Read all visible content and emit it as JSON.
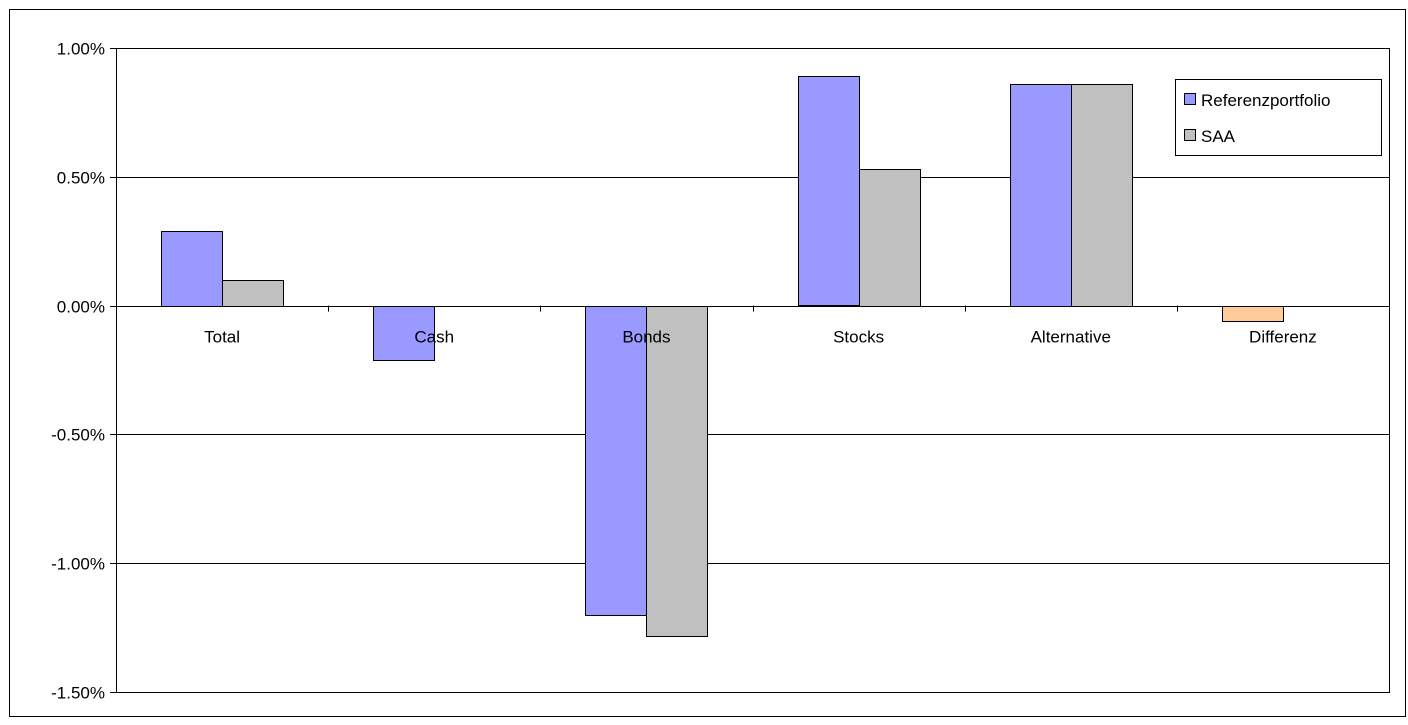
{
  "chart_data": {
    "type": "bar",
    "title": "",
    "xlabel": "",
    "ylabel": "",
    "categories": [
      "Total",
      "Cash",
      "Bonds",
      "Stocks",
      "Alternative",
      "Differenz"
    ],
    "series": [
      {
        "name": "Referenzportfolio",
        "color": "#9999ff",
        "values": [
          0.29,
          -0.21,
          -1.2,
          0.89,
          0.86,
          -0.06
        ]
      },
      {
        "name": "SAA",
        "color": "#c0c0c0",
        "values": [
          0.1,
          0.0,
          -1.28,
          0.53,
          0.86,
          null
        ]
      }
    ],
    "extra_colors": {
      "Differenz": "#ffcc99"
    },
    "ylim": [
      -1.5,
      1.0
    ],
    "yticks": [
      1.0,
      0.5,
      0.0,
      -0.5,
      -1.0,
      -1.5
    ],
    "ytick_labels": [
      "1.00%",
      "0.50%",
      "0.00%",
      "-0.50%",
      "-1.00%",
      "-1.50%"
    ],
    "grid": true,
    "legend_position": "top-right"
  }
}
